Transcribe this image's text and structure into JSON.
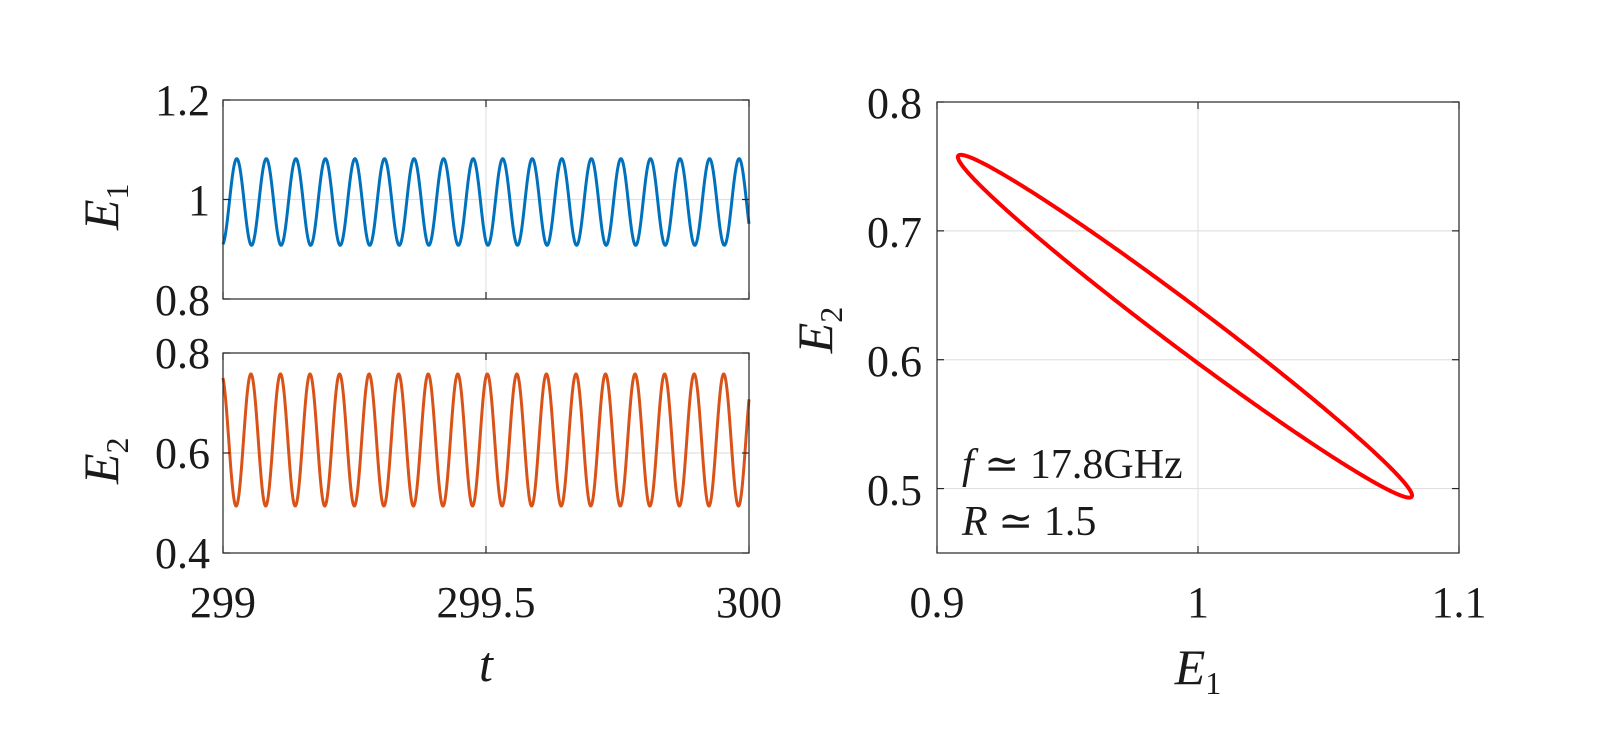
{
  "chart_data": [
    {
      "type": "line",
      "panel": "top-left",
      "ylabel": "E",
      "ylabel_sub": "1",
      "xlim": [
        299,
        300
      ],
      "ylim": [
        0.8,
        1.2
      ],
      "yticks": [
        "0.8",
        "1",
        "1.2"
      ],
      "grid": true,
      "color": "#0072BD",
      "series": [
        {
          "function": "sine",
          "mean": 0.995,
          "amplitude": 0.087,
          "cycles": 17.8,
          "phase_start_value": 0.91,
          "end_value": 0.97
        }
      ]
    },
    {
      "type": "line",
      "panel": "bottom-left",
      "xlabel": "t",
      "ylabel": "E",
      "ylabel_sub": "2",
      "xlim": [
        299,
        300
      ],
      "ylim": [
        0.4,
        0.8
      ],
      "xticks": [
        "299",
        "299.5",
        "300"
      ],
      "yticks": [
        "0.4",
        "0.6",
        "0.8"
      ],
      "grid": true,
      "color": "#D95319",
      "series": [
        {
          "function": "sine",
          "mean": 0.626,
          "amplitude": 0.132,
          "cycles": 17.8,
          "start_value": 0.75,
          "end_value": 0.7
        }
      ]
    },
    {
      "type": "line",
      "panel": "right",
      "xlabel": "E",
      "xlabel_sub": "1",
      "ylabel": "E",
      "ylabel_sub": "2",
      "xlim": [
        0.9,
        1.1
      ],
      "ylim": [
        0.45,
        0.8
      ],
      "xticks": [
        "0.9",
        "1",
        "1.1"
      ],
      "yticks": [
        "0.5",
        "0.6",
        "0.7",
        "0.8"
      ],
      "grid": true,
      "color": "#FF0000",
      "series": [
        {
          "shape": "closed-loop",
          "points": [
            [
              0.908,
              0.76
            ],
            [
              1.083,
              0.493
            ]
          ],
          "center": [
            0.995,
            0.626
          ],
          "axis_half_extent": [
            0.087,
            0.133
          ],
          "width_half": 0.006
        }
      ],
      "annotations": [
        {
          "var": "f",
          "text": " ≃ 17.8GHz"
        },
        {
          "var": "R",
          "text": " ≃ 1.5"
        }
      ]
    }
  ]
}
